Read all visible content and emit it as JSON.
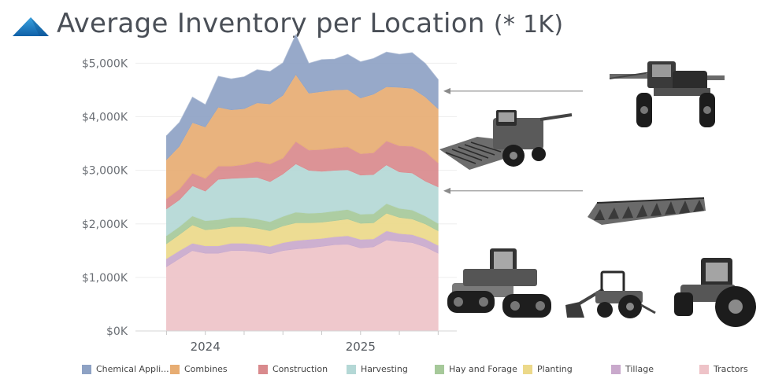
{
  "header": {
    "title": "Average Inventory per Location",
    "unit_label": "(* 1K)",
    "logo_icon": "blue-triangle-logo-icon"
  },
  "chart_data": {
    "type": "area",
    "stacked": true,
    "title": "Average Inventory per Location",
    "ylim": [
      0,
      5300
    ],
    "y_ticks": [
      {
        "value": 0,
        "label": "$0K"
      },
      {
        "value": 1000,
        "label": "$1,000K"
      },
      {
        "value": 2000,
        "label": "$2,000K"
      },
      {
        "value": 3000,
        "label": "$3,000K"
      },
      {
        "value": 4000,
        "label": "$4,000K"
      },
      {
        "value": 5000,
        "label": "$5,000K"
      }
    ],
    "x_ticks": [
      {
        "value": 2024,
        "label": "2024"
      },
      {
        "value": 2025,
        "label": "2025"
      }
    ],
    "x": [
      2023.75,
      2023.833,
      2023.917,
      2024.0,
      2024.083,
      2024.167,
      2024.25,
      2024.333,
      2024.417,
      2024.5,
      2024.583,
      2024.667,
      2024.75,
      2024.833,
      2024.917,
      2025.0,
      2025.083,
      2025.167,
      2025.25,
      2025.333,
      2025.417,
      2025.5
    ],
    "series": [
      {
        "name": "Tractors",
        "color": "#eec3c8",
        "values": [
          1200,
          1350,
          1500,
          1450,
          1450,
          1500,
          1500,
          1480,
          1440,
          1500,
          1530,
          1550,
          1580,
          1610,
          1620,
          1550,
          1570,
          1700,
          1670,
          1650,
          1570,
          1450
        ]
      },
      {
        "name": "Tillage",
        "color": "#c9a9cc",
        "values": [
          150,
          150,
          140,
          140,
          140,
          140,
          140,
          140,
          140,
          150,
          160,
          160,
          150,
          150,
          160,
          160,
          150,
          170,
          150,
          150,
          150,
          150
        ]
      },
      {
        "name": "Planting",
        "color": "#ecd98a",
        "values": [
          280,
          300,
          340,
          300,
          320,
          310,
          310,
          300,
          290,
          310,
          330,
          310,
          300,
          300,
          310,
          300,
          300,
          330,
          300,
          290,
          280,
          270
        ]
      },
      {
        "name": "Hay and Forage",
        "color": "#a6c99a",
        "values": [
          150,
          150,
          170,
          170,
          170,
          170,
          170,
          170,
          170,
          180,
          200,
          180,
          180,
          180,
          180,
          170,
          170,
          180,
          170,
          170,
          150,
          140
        ]
      },
      {
        "name": "Harvesting",
        "color": "#b4d8d6",
        "values": [
          500,
          500,
          560,
          550,
          750,
          730,
          740,
          780,
          750,
          790,
          900,
          800,
          770,
          760,
          740,
          730,
          730,
          720,
          680,
          690,
          650,
          680
        ]
      },
      {
        "name": "Construction",
        "color": "#d98a8d",
        "values": [
          190,
          200,
          240,
          240,
          250,
          230,
          250,
          300,
          330,
          300,
          420,
          380,
          410,
          420,
          430,
          400,
          410,
          450,
          490,
          500,
          550,
          450
        ]
      },
      {
        "name": "Combines",
        "color": "#e7ad73",
        "values": [
          730,
          800,
          940,
          960,
          1100,
          1050,
          1040,
          1090,
          1120,
          1170,
          1250,
          1060,
          1080,
          1080,
          1070,
          1040,
          1090,
          1010,
          1090,
          1080,
          1020,
          1010
        ]
      },
      {
        "name": "Chemical Appli...",
        "color": "#8ea2c4",
        "values": [
          450,
          450,
          480,
          420,
          580,
          580,
          600,
          620,
          610,
          610,
          750,
          560,
          600,
          580,
          660,
          680,
          670,
          650,
          620,
          670,
          630,
          550
        ]
      }
    ],
    "legend_order": [
      "Chemical Appli...",
      "Combines",
      "Construction",
      "Harvesting",
      "Hay and Forage",
      "Planting",
      "Tillage",
      "Tractors"
    ],
    "legend_position": "bottom",
    "grid": true,
    "annotations": [
      {
        "type": "arrow",
        "target_series": "Chemical Appli...",
        "points_to": "top-right of stack"
      },
      {
        "type": "arrow",
        "target_series": "Harvesting",
        "points_to": "right edge"
      }
    ]
  },
  "images": [
    {
      "name": "self-propelled-sprayer-image",
      "icon": "sprayer-icon"
    },
    {
      "name": "combine-harvester-image",
      "icon": "combine-icon"
    },
    {
      "name": "corn-header-image",
      "icon": "header-icon"
    },
    {
      "name": "tracked-tractor-image",
      "icon": "tracked-tractor-icon"
    },
    {
      "name": "loader-tractor-image",
      "icon": "loader-tractor-icon"
    },
    {
      "name": "row-crop-tractor-image",
      "icon": "tractor-icon"
    }
  ]
}
